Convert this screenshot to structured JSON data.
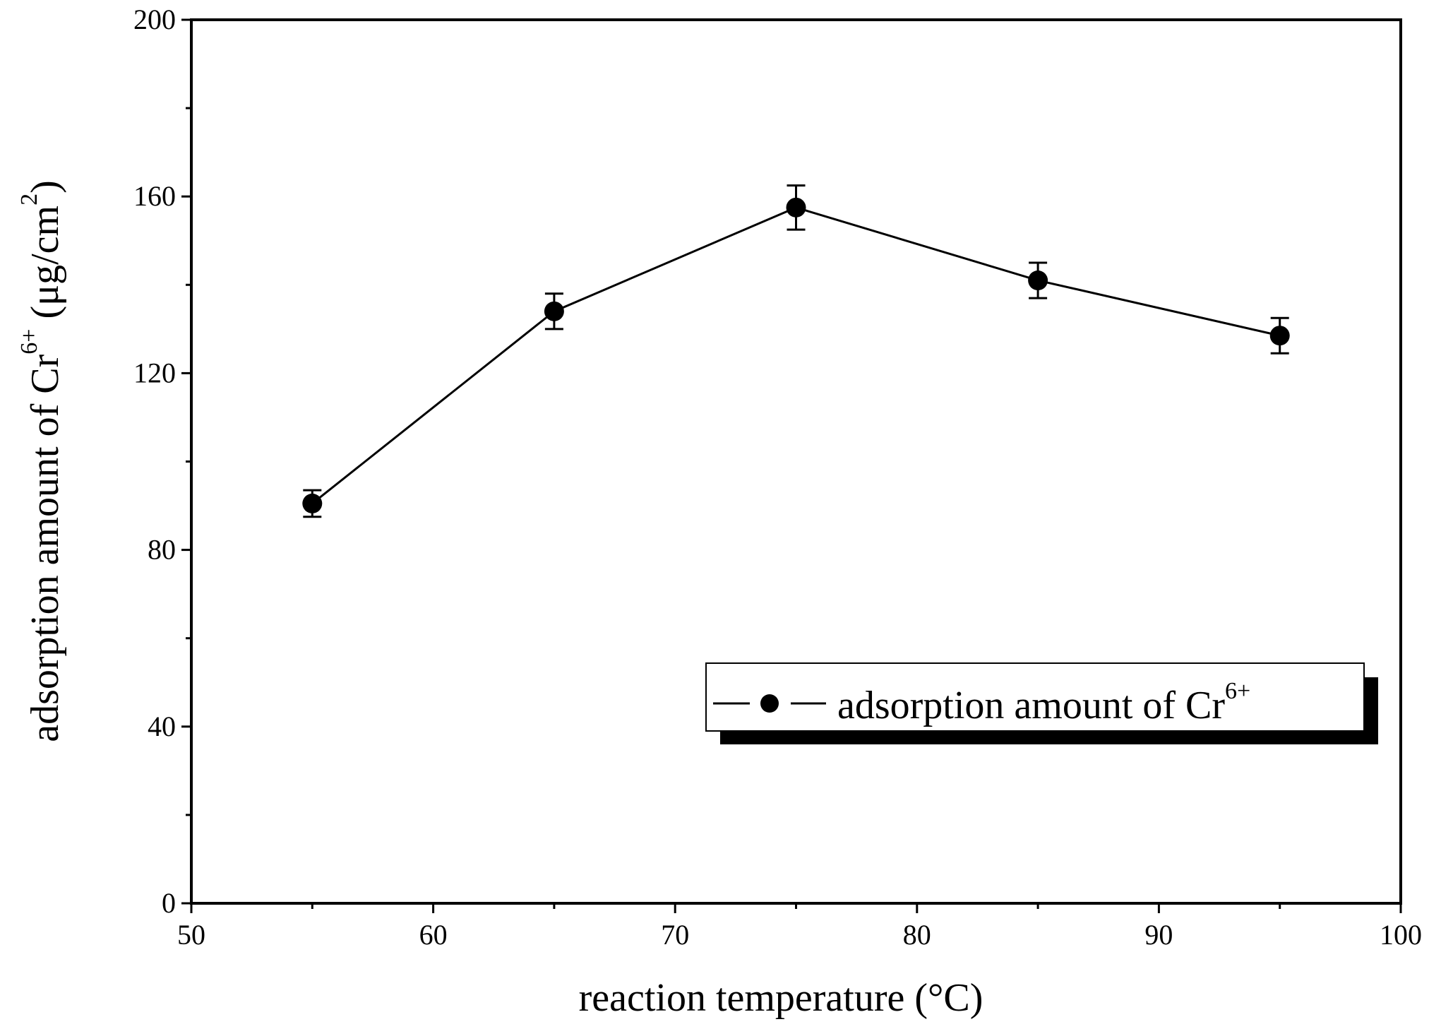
{
  "chart_data": {
    "type": "line",
    "title": "",
    "xlabel": "reaction temperature (°C)",
    "ylabel": {
      "main": "adsorption amount of Cr",
      "sup": "6+",
      "unit_open": "(μg/cm",
      "unit_sup": "2",
      "unit_close": ")"
    },
    "xlim": [
      50,
      100
    ],
    "ylim": [
      0,
      200
    ],
    "xticks": [
      50,
      60,
      70,
      80,
      90,
      100
    ],
    "yticks": [
      0,
      40,
      80,
      120,
      160,
      200
    ],
    "xtick_labels": [
      "50",
      "60",
      "70",
      "80",
      "90",
      "100"
    ],
    "ytick_labels": [
      "0",
      "40",
      "80",
      "120",
      "160",
      "200"
    ],
    "grid": false,
    "series": [
      {
        "name": "adsorption amount of Cr",
        "name_sup": "6+",
        "x": [
          55,
          65,
          75,
          85,
          95
        ],
        "y": [
          90.5,
          134,
          157.5,
          141,
          128.5
        ],
        "error": [
          3,
          4,
          5,
          4,
          4
        ],
        "marker": "circle",
        "color": "#000000"
      }
    ],
    "legend": {
      "position": "bottom-right"
    }
  }
}
